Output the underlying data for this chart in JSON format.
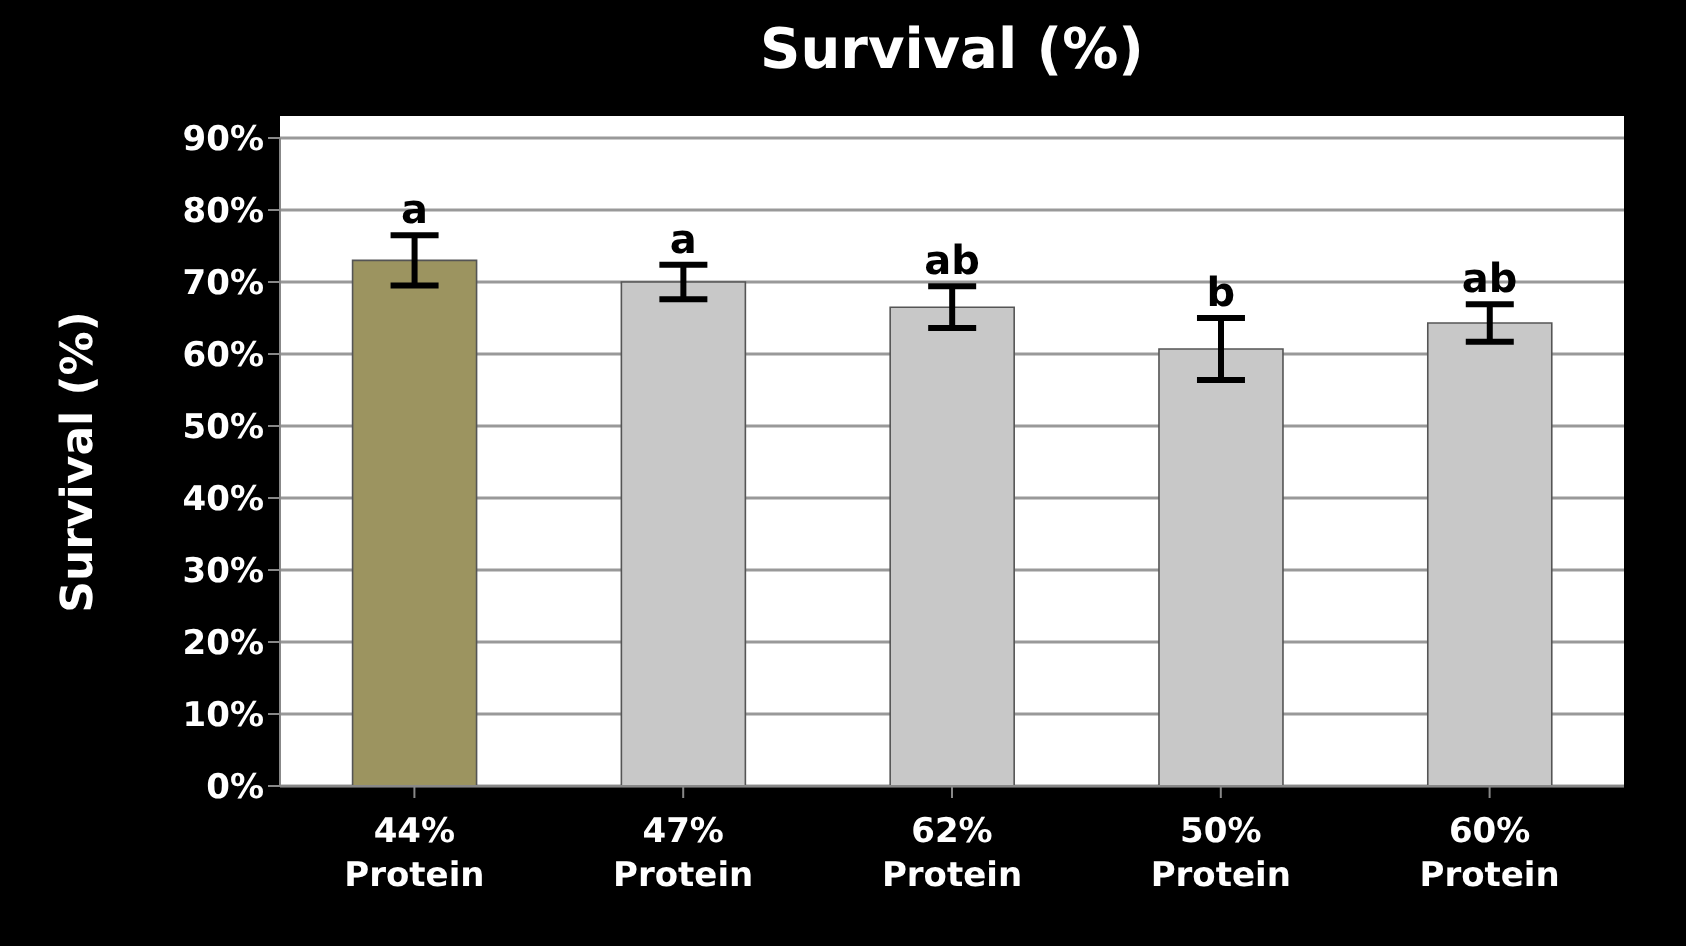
{
  "chart_data": {
    "type": "bar",
    "title": "Survival (%)",
    "ylabel": "Survival (%)",
    "categories": [
      "44% Protein",
      "47% Protein",
      "62% Protein",
      "50% Protein",
      "60% Protein"
    ],
    "values": [
      73,
      70,
      66.5,
      60.7,
      64.3
    ],
    "colors": [
      "#9c9460",
      "#c8c8c8",
      "#c8c8c8",
      "#c8c8c8",
      "#c8c8c8"
    ],
    "errors": [
      3.5,
      2.4,
      2.9,
      4.3,
      2.6
    ],
    "ylim": [
      0,
      90
    ],
    "yticks": [
      {
        "value": 0,
        "label": "0%"
      },
      {
        "value": 10,
        "label": "10%"
      },
      {
        "value": 20,
        "label": "20%"
      },
      {
        "value": 30,
        "label": "30%"
      },
      {
        "value": 40,
        "label": "40%"
      },
      {
        "value": 50,
        "label": "50%"
      },
      {
        "value": 60,
        "label": "60%"
      },
      {
        "value": 70,
        "label": "70%"
      },
      {
        "value": 80,
        "label": "80%"
      },
      {
        "value": 90,
        "label": "90%"
      }
    ],
    "grid": "y",
    "annotations": [
      {
        "text": "a",
        "x": "44% Protein",
        "y": 73
      },
      {
        "text": "a",
        "x": "47% Protein",
        "y": 70
      },
      {
        "text": "ab",
        "x": "62% Protein",
        "y": 66.5
      },
      {
        "text": "b",
        "x": "50% Protein",
        "y": 60.7
      },
      {
        "text": "ab",
        "x": "60% Protein",
        "y": 64.3
      }
    ]
  }
}
